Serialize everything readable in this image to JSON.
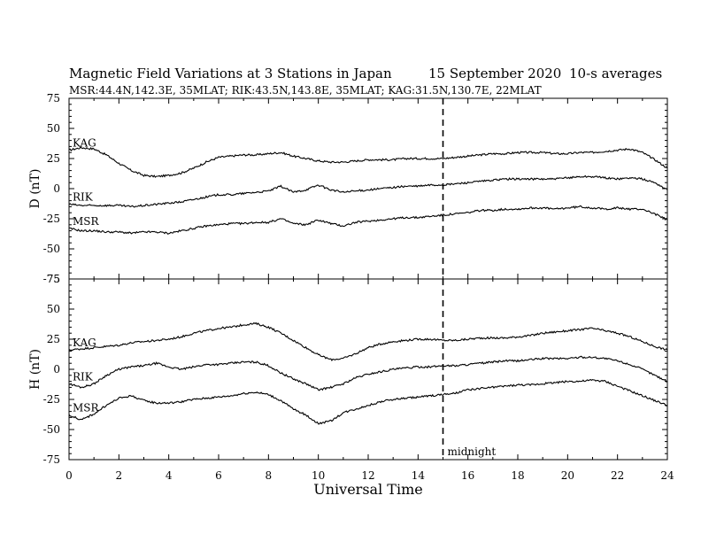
{
  "chart_data": [
    {
      "type": "line",
      "panel": "D",
      "title": "Magnetic Field Variations at 3 Stations in Japan",
      "date": "15 September 2020",
      "note": "10-s averages",
      "subtitle": "MSR:44.4N,142.3E, 35MLAT;  RIK:43.5N,143.8E, 35MLAT;  KAG:31.5N,130.7E, 22MLAT",
      "ylabel": "D (nT)",
      "xlabel": "",
      "xlim": [
        0,
        24
      ],
      "ylim": [
        -75,
        75
      ],
      "yticks": [
        -75,
        -50,
        -25,
        0,
        25,
        50,
        75
      ],
      "grid": false,
      "series": [
        {
          "name": "KAG",
          "x": [
            0,
            0.5,
            1,
            1.5,
            2,
            2.5,
            3,
            3.5,
            4,
            4.5,
            5,
            5.5,
            6,
            6.5,
            7,
            7.5,
            8,
            8.5,
            9,
            9.5,
            10,
            10.5,
            11,
            11.5,
            12,
            12.5,
            13,
            13.5,
            14,
            14.5,
            15,
            15.5,
            16,
            16.5,
            17,
            17.5,
            18,
            18.5,
            19,
            19.5,
            20,
            20.5,
            21,
            21.5,
            22,
            22.5,
            23,
            23.5,
            24
          ],
          "values": [
            32,
            34,
            33,
            28,
            21,
            15,
            11,
            10,
            11,
            13,
            17,
            22,
            26,
            27,
            28,
            28,
            29,
            30,
            27,
            25,
            23,
            22,
            22,
            23,
            24,
            24,
            24,
            25,
            25,
            25,
            25,
            26,
            27,
            28,
            29,
            29,
            30,
            30,
            30,
            29,
            29,
            30,
            30,
            31,
            32,
            33,
            30,
            24,
            17
          ]
        },
        {
          "name": "RIK",
          "x": [
            0,
            0.5,
            1,
            1.5,
            2,
            2.5,
            3,
            3.5,
            4,
            4.5,
            5,
            5.5,
            6,
            6.5,
            7,
            7.5,
            8,
            8.5,
            9,
            9.5,
            10,
            10.5,
            11,
            11.5,
            12,
            12.5,
            13,
            13.5,
            14,
            14.5,
            15,
            15.5,
            16,
            16.5,
            17,
            17.5,
            18,
            18.5,
            19,
            19.5,
            20,
            20.5,
            21,
            21.5,
            22,
            22.5,
            23,
            23.5,
            24
          ],
          "values": [
            -13,
            -14,
            -14,
            -14,
            -14,
            -15,
            -14,
            -13,
            -12,
            -11,
            -9,
            -7,
            -5,
            -5,
            -4,
            -3,
            -2,
            2,
            -3,
            -1,
            3,
            -1,
            -3,
            -2,
            -1,
            0,
            1,
            2,
            2,
            3,
            3,
            4,
            5,
            6,
            7,
            8,
            8,
            8,
            8,
            8,
            9,
            10,
            10,
            9,
            8,
            9,
            8,
            5,
            -1
          ]
        },
        {
          "name": "MSR",
          "x": [
            0,
            0.5,
            1,
            1.5,
            2,
            2.5,
            3,
            3.5,
            4,
            4.5,
            5,
            5.5,
            6,
            6.5,
            7,
            7.5,
            8,
            8.5,
            9,
            9.5,
            10,
            10.5,
            11,
            11.5,
            12,
            12.5,
            13,
            13.5,
            14,
            14.5,
            15,
            15.5,
            16,
            16.5,
            17,
            17.5,
            18,
            18.5,
            19,
            19.5,
            20,
            20.5,
            21,
            21.5,
            22,
            22.5,
            23,
            23.5,
            24
          ],
          "values": [
            -33,
            -35,
            -35,
            -36,
            -36,
            -37,
            -36,
            -36,
            -37,
            -35,
            -33,
            -31,
            -30,
            -29,
            -29,
            -28,
            -28,
            -25,
            -29,
            -30,
            -26,
            -29,
            -31,
            -28,
            -27,
            -26,
            -25,
            -24,
            -24,
            -23,
            -22,
            -21,
            -20,
            -18,
            -18,
            -17,
            -17,
            -16,
            -16,
            -17,
            -16,
            -15,
            -16,
            -17,
            -16,
            -17,
            -17,
            -21,
            -26
          ]
        }
      ]
    },
    {
      "type": "line",
      "panel": "H",
      "ylabel": "H (nT)",
      "xlabel": "Universal Time",
      "xlim": [
        0,
        24
      ],
      "ylim": [
        -75,
        75
      ],
      "xticks": [
        0,
        2,
        4,
        6,
        8,
        10,
        12,
        14,
        16,
        18,
        20,
        22,
        24
      ],
      "yticks": [
        -75,
        -50,
        -25,
        0,
        25,
        50,
        75
      ],
      "grid": false,
      "annotation": {
        "text": "midnight",
        "x": 15
      },
      "series": [
        {
          "name": "KAG",
          "x": [
            0,
            0.5,
            1,
            1.5,
            2,
            2.5,
            3,
            3.5,
            4,
            4.5,
            5,
            5.5,
            6,
            6.5,
            7,
            7.5,
            8,
            8.5,
            9,
            9.5,
            10,
            10.5,
            11,
            11.5,
            12,
            12.5,
            13,
            13.5,
            14,
            14.5,
            15,
            15.5,
            16,
            16.5,
            17,
            17.5,
            18,
            18.5,
            19,
            19.5,
            20,
            20.5,
            21,
            21.5,
            22,
            22.5,
            23,
            23.5,
            24
          ],
          "values": [
            16,
            17,
            18,
            19,
            20,
            22,
            23,
            24,
            25,
            27,
            30,
            32,
            34,
            35,
            37,
            38,
            35,
            30,
            24,
            18,
            12,
            8,
            9,
            13,
            18,
            21,
            23,
            24,
            25,
            25,
            24,
            24,
            25,
            26,
            26,
            26,
            27,
            28,
            30,
            31,
            32,
            33,
            34,
            32,
            30,
            27,
            23,
            19,
            16
          ]
        },
        {
          "name": "RIK",
          "x": [
            0,
            0.5,
            1,
            1.5,
            2,
            2.5,
            3,
            3.5,
            4,
            4.5,
            5,
            5.5,
            6,
            6.5,
            7,
            7.5,
            8,
            8.5,
            9,
            9.5,
            10,
            10.5,
            11,
            11.5,
            12,
            12.5,
            13,
            13.5,
            14,
            14.5,
            15,
            15.5,
            16,
            16.5,
            17,
            17.5,
            18,
            18.5,
            19,
            19.5,
            20,
            20.5,
            21,
            21.5,
            22,
            22.5,
            23,
            23.5,
            24
          ],
          "values": [
            -12,
            -15,
            -12,
            -5,
            0,
            2,
            3,
            5,
            2,
            0,
            2,
            4,
            4,
            5,
            6,
            6,
            3,
            -3,
            -8,
            -12,
            -17,
            -15,
            -12,
            -7,
            -4,
            -2,
            0,
            1,
            2,
            2,
            3,
            3,
            4,
            5,
            6,
            7,
            7,
            8,
            9,
            9,
            9,
            10,
            10,
            9,
            7,
            4,
            0,
            -5,
            -10
          ]
        },
        {
          "name": "MSR",
          "x": [
            0,
            0.5,
            1,
            1.5,
            2,
            2.5,
            3,
            3.5,
            4,
            4.5,
            5,
            5.5,
            6,
            6.5,
            7,
            7.5,
            8,
            8.5,
            9,
            9.5,
            10,
            10.5,
            11,
            11.5,
            12,
            12.5,
            13,
            13.5,
            14,
            14.5,
            15,
            15.5,
            16,
            16.5,
            17,
            17.5,
            18,
            18.5,
            19,
            19.5,
            20,
            20.5,
            21,
            21.5,
            22,
            22.5,
            23,
            23.5,
            24
          ],
          "values": [
            -38,
            -42,
            -37,
            -30,
            -24,
            -22,
            -26,
            -28,
            -28,
            -27,
            -25,
            -24,
            -23,
            -22,
            -20,
            -19,
            -21,
            -26,
            -33,
            -38,
            -45,
            -43,
            -36,
            -33,
            -30,
            -27,
            -25,
            -24,
            -23,
            -22,
            -21,
            -20,
            -17,
            -16,
            -15,
            -14,
            -13,
            -13,
            -12,
            -11,
            -10,
            -10,
            -9,
            -10,
            -14,
            -18,
            -22,
            -26,
            -30
          ]
        }
      ]
    }
  ]
}
